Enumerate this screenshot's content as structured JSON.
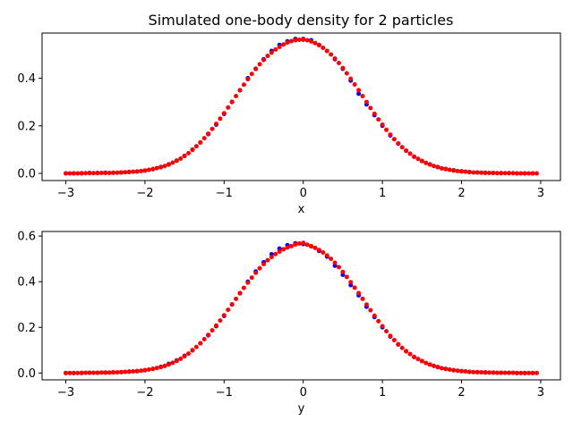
{
  "figure": {
    "title": "Simulated one-body density for 2 particles"
  },
  "chart_data": [
    {
      "type": "scatter",
      "title": "Simulated one-body density for 2 particles",
      "xlabel": "x",
      "ylabel": "",
      "xlim": [
        -3.3,
        3.25
      ],
      "ylim": [
        -0.03,
        0.59
      ],
      "xticks": [
        -3,
        -2,
        -1,
        0,
        1,
        2,
        3
      ],
      "xtick_labels": [
        "−3",
        "−2",
        "−1",
        "0",
        "1",
        "2",
        "3"
      ],
      "yticks": [
        0.0,
        0.2,
        0.4
      ],
      "ytick_labels": [
        "0.0",
        "0.2",
        "0.4"
      ],
      "grid": false,
      "series": [
        {
          "color": "#0000ff",
          "x": [
            -3.0,
            -2.9,
            -2.8,
            -2.7,
            -2.6,
            -2.5,
            -2.4,
            -2.3,
            -2.2,
            -2.1,
            -2.0,
            -1.9,
            -1.8,
            -1.7,
            -1.6,
            -1.5,
            -1.4,
            -1.3,
            -1.2,
            -1.1,
            -1.0,
            -0.9,
            -0.8,
            -0.7,
            -0.6,
            -0.5,
            -0.4,
            -0.3,
            -0.2,
            -0.1,
            0.0,
            0.1,
            0.2,
            0.3,
            0.4,
            0.5,
            0.6,
            0.7,
            0.8,
            0.9,
            1.0,
            1.1,
            1.2,
            1.3,
            1.4,
            1.5,
            1.6,
            1.7,
            1.8,
            1.9,
            2.0,
            2.1,
            2.2,
            2.3,
            2.4,
            2.5,
            2.6,
            2.7,
            2.8,
            2.9
          ],
          "y": [
            0.0,
            0.0,
            0.0,
            0.002,
            0.002,
            0.003,
            0.003,
            0.004,
            0.006,
            0.008,
            0.012,
            0.018,
            0.027,
            0.038,
            0.054,
            0.074,
            0.1,
            0.13,
            0.165,
            0.205,
            0.25,
            0.3,
            0.35,
            0.4,
            0.44,
            0.48,
            0.515,
            0.54,
            0.555,
            0.565,
            0.565,
            0.56,
            0.54,
            0.515,
            0.48,
            0.44,
            0.39,
            0.335,
            0.29,
            0.245,
            0.2,
            0.16,
            0.125,
            0.095,
            0.07,
            0.052,
            0.038,
            0.027,
            0.019,
            0.013,
            0.009,
            0.006,
            0.004,
            0.003,
            0.002,
            0.001,
            0.001,
            0.0,
            0.0,
            0.0
          ]
        },
        {
          "color": "#ff0000",
          "x": [
            -3.0,
            -2.95,
            -2.9,
            -2.85,
            -2.8,
            -2.75,
            -2.7,
            -2.65,
            -2.6,
            -2.55,
            -2.5,
            -2.45,
            -2.4,
            -2.35,
            -2.3,
            -2.25,
            -2.2,
            -2.15,
            -2.1,
            -2.05,
            -2.0,
            -1.95,
            -1.9,
            -1.85,
            -1.8,
            -1.75,
            -1.7,
            -1.65,
            -1.6,
            -1.55,
            -1.5,
            -1.45,
            -1.4,
            -1.35,
            -1.3,
            -1.25,
            -1.2,
            -1.15,
            -1.1,
            -1.05,
            -1.0,
            -0.95,
            -0.9,
            -0.85,
            -0.8,
            -0.75,
            -0.7,
            -0.65,
            -0.6,
            -0.55,
            -0.5,
            -0.45,
            -0.4,
            -0.35,
            -0.3,
            -0.25,
            -0.2,
            -0.15,
            -0.1,
            -0.05,
            0.0,
            0.05,
            0.1,
            0.15,
            0.2,
            0.25,
            0.3,
            0.35,
            0.4,
            0.45,
            0.5,
            0.55,
            0.6,
            0.65,
            0.7,
            0.75,
            0.8,
            0.85,
            0.9,
            0.95,
            1.0,
            1.05,
            1.1,
            1.15,
            1.2,
            1.25,
            1.3,
            1.35,
            1.4,
            1.45,
            1.5,
            1.55,
            1.6,
            1.65,
            1.7,
            1.75,
            1.8,
            1.85,
            1.9,
            1.95,
            2.0,
            2.05,
            2.1,
            2.15,
            2.2,
            2.25,
            2.3,
            2.35,
            2.4,
            2.45,
            2.5,
            2.55,
            2.6,
            2.65,
            2.7,
            2.75,
            2.8,
            2.85,
            2.9,
            2.95
          ],
          "y": [
            0.0,
            0.0,
            0.0,
            0.0,
            0.001,
            0.001,
            0.001,
            0.001,
            0.001,
            0.002,
            0.002,
            0.002,
            0.003,
            0.003,
            0.004,
            0.005,
            0.006,
            0.007,
            0.008,
            0.01,
            0.012,
            0.015,
            0.018,
            0.022,
            0.026,
            0.031,
            0.037,
            0.045,
            0.053,
            0.062,
            0.073,
            0.085,
            0.099,
            0.114,
            0.13,
            0.148,
            0.167,
            0.187,
            0.208,
            0.23,
            0.253,
            0.277,
            0.301,
            0.325,
            0.349,
            0.373,
            0.396,
            0.418,
            0.439,
            0.459,
            0.477,
            0.494,
            0.508,
            0.521,
            0.532,
            0.542,
            0.55,
            0.556,
            0.56,
            0.562,
            0.562,
            0.56,
            0.555,
            0.548,
            0.539,
            0.528,
            0.515,
            0.5,
            0.483,
            0.464,
            0.443,
            0.421,
            0.398,
            0.374,
            0.35,
            0.325,
            0.3,
            0.275,
            0.251,
            0.227,
            0.205,
            0.183,
            0.163,
            0.144,
            0.126,
            0.11,
            0.096,
            0.083,
            0.071,
            0.061,
            0.052,
            0.044,
            0.037,
            0.031,
            0.026,
            0.021,
            0.018,
            0.015,
            0.012,
            0.01,
            0.008,
            0.007,
            0.005,
            0.004,
            0.004,
            0.003,
            0.002,
            0.002,
            0.002,
            0.001,
            0.001,
            0.001,
            0.001,
            0.001,
            0.0,
            0.0,
            0.0,
            0.0,
            0.0,
            0.0
          ]
        }
      ]
    },
    {
      "type": "scatter",
      "title": "",
      "xlabel": "y",
      "ylabel": "",
      "xlim": [
        -3.3,
        3.25
      ],
      "ylim": [
        -0.03,
        0.62
      ],
      "xticks": [
        -3,
        -2,
        -1,
        0,
        1,
        2,
        3
      ],
      "xtick_labels": [
        "−3",
        "−2",
        "−1",
        "0",
        "1",
        "2",
        "3"
      ],
      "yticks": [
        0.0,
        0.2,
        0.4,
        0.6
      ],
      "ytick_labels": [
        "0.0",
        "0.2",
        "0.4",
        "0.6"
      ],
      "grid": false,
      "series": [
        {
          "color": "#0000ff",
          "x": [
            -3.0,
            -2.9,
            -2.8,
            -2.7,
            -2.6,
            -2.5,
            -2.4,
            -2.3,
            -2.2,
            -2.1,
            -2.0,
            -1.9,
            -1.8,
            -1.7,
            -1.6,
            -1.5,
            -1.4,
            -1.3,
            -1.2,
            -1.1,
            -1.0,
            -0.9,
            -0.8,
            -0.7,
            -0.6,
            -0.5,
            -0.4,
            -0.3,
            -0.2,
            -0.1,
            0.0,
            0.1,
            0.2,
            0.3,
            0.4,
            0.5,
            0.6,
            0.7,
            0.8,
            0.9,
            1.0,
            1.1,
            1.2,
            1.3,
            1.4,
            1.5,
            1.6,
            1.7,
            1.8,
            1.9,
            2.0,
            2.1,
            2.2,
            2.3,
            2.4,
            2.5,
            2.6,
            2.7,
            2.8,
            2.9
          ],
          "y": [
            0.0,
            0.0,
            0.0,
            0.001,
            0.001,
            0.002,
            0.003,
            0.004,
            0.006,
            0.008,
            0.012,
            0.018,
            0.027,
            0.04,
            0.055,
            0.075,
            0.1,
            0.13,
            0.165,
            0.205,
            0.25,
            0.3,
            0.35,
            0.4,
            0.445,
            0.485,
            0.52,
            0.545,
            0.56,
            0.568,
            0.565,
            0.555,
            0.535,
            0.51,
            0.47,
            0.43,
            0.385,
            0.34,
            0.29,
            0.245,
            0.2,
            0.16,
            0.125,
            0.095,
            0.07,
            0.052,
            0.037,
            0.026,
            0.018,
            0.012,
            0.008,
            0.005,
            0.004,
            0.003,
            0.002,
            0.001,
            0.001,
            0.0,
            0.0,
            0.0
          ]
        },
        {
          "color": "#ff0000",
          "x": [
            -3.0,
            -2.95,
            -2.9,
            -2.85,
            -2.8,
            -2.75,
            -2.7,
            -2.65,
            -2.6,
            -2.55,
            -2.5,
            -2.45,
            -2.4,
            -2.35,
            -2.3,
            -2.25,
            -2.2,
            -2.15,
            -2.1,
            -2.05,
            -2.0,
            -1.95,
            -1.9,
            -1.85,
            -1.8,
            -1.75,
            -1.7,
            -1.65,
            -1.6,
            -1.55,
            -1.5,
            -1.45,
            -1.4,
            -1.35,
            -1.3,
            -1.25,
            -1.2,
            -1.15,
            -1.1,
            -1.05,
            -1.0,
            -0.95,
            -0.9,
            -0.85,
            -0.8,
            -0.75,
            -0.7,
            -0.65,
            -0.6,
            -0.55,
            -0.5,
            -0.45,
            -0.4,
            -0.35,
            -0.3,
            -0.25,
            -0.2,
            -0.15,
            -0.1,
            -0.05,
            0.0,
            0.05,
            0.1,
            0.15,
            0.2,
            0.25,
            0.3,
            0.35,
            0.4,
            0.45,
            0.5,
            0.55,
            0.6,
            0.65,
            0.7,
            0.75,
            0.8,
            0.85,
            0.9,
            0.95,
            1.0,
            1.05,
            1.1,
            1.15,
            1.2,
            1.25,
            1.3,
            1.35,
            1.4,
            1.45,
            1.5,
            1.55,
            1.6,
            1.65,
            1.7,
            1.75,
            1.8,
            1.85,
            1.9,
            1.95,
            2.0,
            2.05,
            2.1,
            2.15,
            2.2,
            2.25,
            2.3,
            2.35,
            2.4,
            2.45,
            2.5,
            2.55,
            2.6,
            2.65,
            2.7,
            2.75,
            2.8,
            2.85,
            2.9,
            2.95
          ],
          "y": [
            0.0,
            0.0,
            0.0,
            0.0,
            0.001,
            0.001,
            0.001,
            0.001,
            0.001,
            0.002,
            0.002,
            0.002,
            0.003,
            0.003,
            0.004,
            0.005,
            0.006,
            0.007,
            0.008,
            0.01,
            0.012,
            0.015,
            0.018,
            0.022,
            0.026,
            0.031,
            0.037,
            0.045,
            0.053,
            0.062,
            0.073,
            0.085,
            0.099,
            0.114,
            0.13,
            0.148,
            0.167,
            0.187,
            0.208,
            0.23,
            0.253,
            0.277,
            0.301,
            0.325,
            0.349,
            0.373,
            0.396,
            0.418,
            0.439,
            0.459,
            0.477,
            0.494,
            0.508,
            0.521,
            0.532,
            0.542,
            0.55,
            0.556,
            0.563,
            0.567,
            0.57,
            0.562,
            0.556,
            0.548,
            0.539,
            0.528,
            0.515,
            0.5,
            0.483,
            0.464,
            0.443,
            0.421,
            0.398,
            0.374,
            0.35,
            0.325,
            0.3,
            0.275,
            0.251,
            0.227,
            0.205,
            0.183,
            0.163,
            0.144,
            0.126,
            0.11,
            0.096,
            0.083,
            0.071,
            0.061,
            0.052,
            0.044,
            0.037,
            0.031,
            0.026,
            0.021,
            0.018,
            0.015,
            0.012,
            0.01,
            0.008,
            0.007,
            0.005,
            0.004,
            0.004,
            0.003,
            0.002,
            0.002,
            0.002,
            0.001,
            0.001,
            0.001,
            0.001,
            0.001,
            0.0,
            0.0,
            0.0,
            0.0,
            0.0,
            0.0
          ]
        }
      ]
    }
  ]
}
